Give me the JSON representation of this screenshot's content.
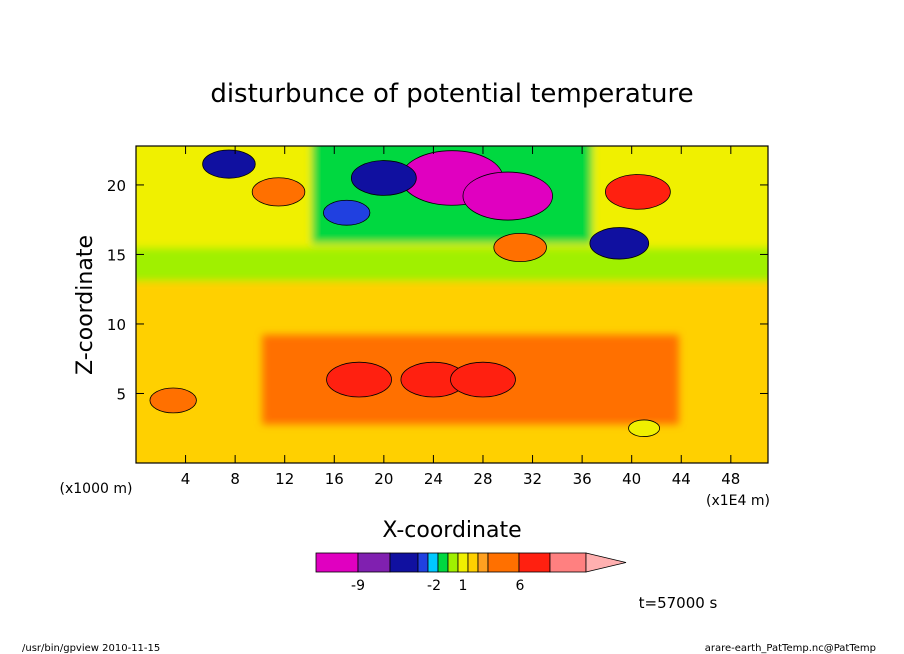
{
  "chart_data": {
    "type": "heatmap",
    "title": "disturbunce of potential temperature",
    "xlabel": "X-coordinate",
    "ylabel": "Z-coordinate",
    "x_unit_label": "(x1000 m)",
    "x_scale_label": "(x1E4 m)",
    "time_label": "t=57000 s",
    "xlim": [
      0,
      51
    ],
    "ylim": [
      0,
      22.8
    ],
    "x_ticks": [
      "4",
      "8",
      "12",
      "16",
      "20",
      "24",
      "28",
      "32",
      "36",
      "40",
      "44",
      "48"
    ],
    "y_ticks": [
      "5",
      "10",
      "15",
      "20"
    ],
    "colorbar": {
      "levels": [
        -12,
        -9,
        -6,
        -3,
        -2,
        -1,
        0,
        0.5,
        1,
        2,
        3,
        6,
        9,
        12
      ],
      "labels": [
        "-9",
        "-2",
        "1",
        "6"
      ],
      "colors": [
        "#e000c0",
        "#8020b0",
        "#1010a0",
        "#2040e0",
        "#00c8ff",
        "#00d840",
        "#a0f000",
        "#f0f000",
        "#ffd000",
        "#ffa020",
        "#ff7000",
        "#ff2010",
        "#ff8080",
        "#ffb0b0"
      ]
    },
    "field_features": [
      {
        "x": 25.5,
        "z": 20.5,
        "value": -12
      },
      {
        "x": 30,
        "z": 19.2,
        "value": -10
      },
      {
        "x": 20,
        "z": 20.5,
        "value": -6
      },
      {
        "x": 39,
        "z": 15.8,
        "value": -5
      },
      {
        "x": 7.5,
        "z": 21.5,
        "value": -4
      },
      {
        "x": 17,
        "z": 18,
        "value": -3
      },
      {
        "x": 40.5,
        "z": 19.5,
        "value": 6
      },
      {
        "x": 11.5,
        "z": 19.5,
        "value": 4
      },
      {
        "x": 31,
        "z": 15.5,
        "value": 4
      },
      {
        "x": 18,
        "z": 6,
        "value": 6
      },
      {
        "x": 24,
        "z": 6,
        "value": 6
      },
      {
        "x": 28,
        "z": 6,
        "value": 6
      },
      {
        "x": 3,
        "z": 4.5,
        "value": 3
      },
      {
        "x": 41,
        "z": 2.5,
        "value": 0.5
      }
    ]
  },
  "footer": {
    "left": "/usr/bin/gpview   2010-11-15",
    "right": "arare-earth_PatTemp.nc@PatTemp"
  },
  "colors": {
    "background": "#ffffff",
    "axis": "#000000"
  }
}
